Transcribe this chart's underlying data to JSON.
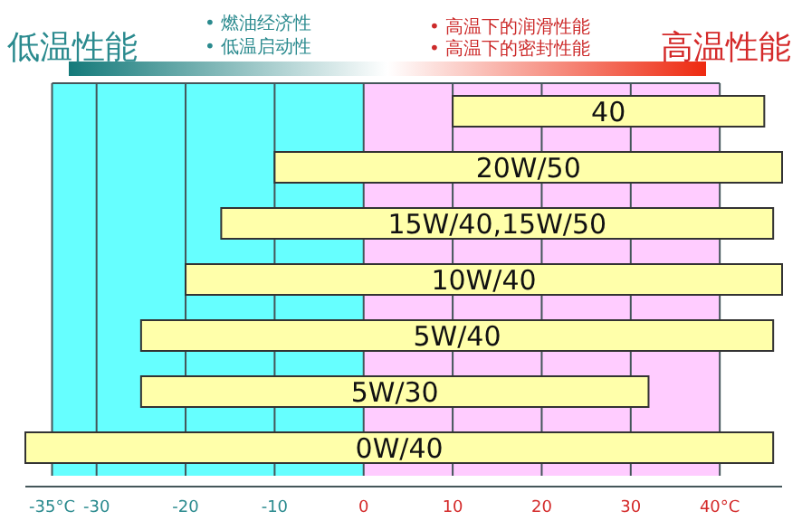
{
  "chart_data": {
    "type": "bar",
    "orientation": "horizontal",
    "categories": [
      "40",
      "20W/50",
      "15W/40,15W/50",
      "10W/40",
      "5W/40",
      "5W/30",
      "0W/40"
    ],
    "base": [
      10,
      -10,
      -16,
      -20,
      -25,
      -25,
      -38
    ],
    "values": [
      35,
      57,
      62,
      67,
      71,
      57,
      84
    ],
    "color": "#ffffaa",
    "xlim": [
      -38,
      47
    ],
    "xticks": [
      {
        "value": -35,
        "label": "-35°C"
      },
      -30,
      -20,
      -10,
      0,
      10,
      20,
      30,
      {
        "value": 40,
        "label": "40°C"
      }
    ],
    "grid": "x",
    "bands": [
      {
        "axis": "x",
        "from": -35,
        "to": 0,
        "color": "#66ffff"
      },
      {
        "axis": "x",
        "from": 0,
        "to": 40,
        "color": "#ffccff"
      }
    ],
    "annotations": [
      "低温性能",
      "高温性能",
      "• 燃油经济性",
      "• 低温启动性",
      "• 高温下的润滑性能",
      "• 高温下的密封性能"
    ]
  }
}
